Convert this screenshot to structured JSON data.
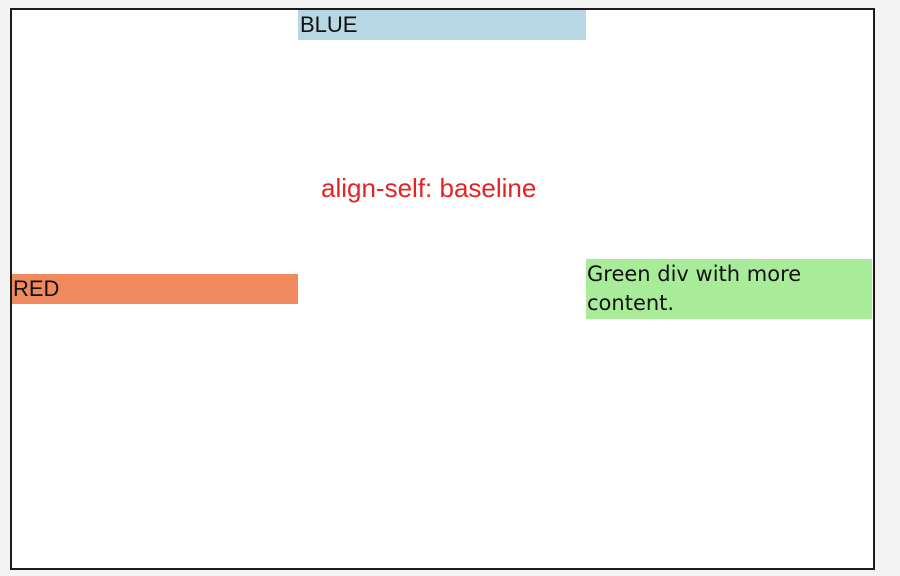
{
  "demo": {
    "caption": "align-self: baseline",
    "boxes": {
      "blue": {
        "label": "BLUE",
        "color": "#b6d7e3"
      },
      "red": {
        "label": "RED",
        "color": "#f0895e"
      },
      "green": {
        "label": "Green div with more content.",
        "color": "#a8ec99"
      }
    },
    "caption_color": "#e32424"
  }
}
